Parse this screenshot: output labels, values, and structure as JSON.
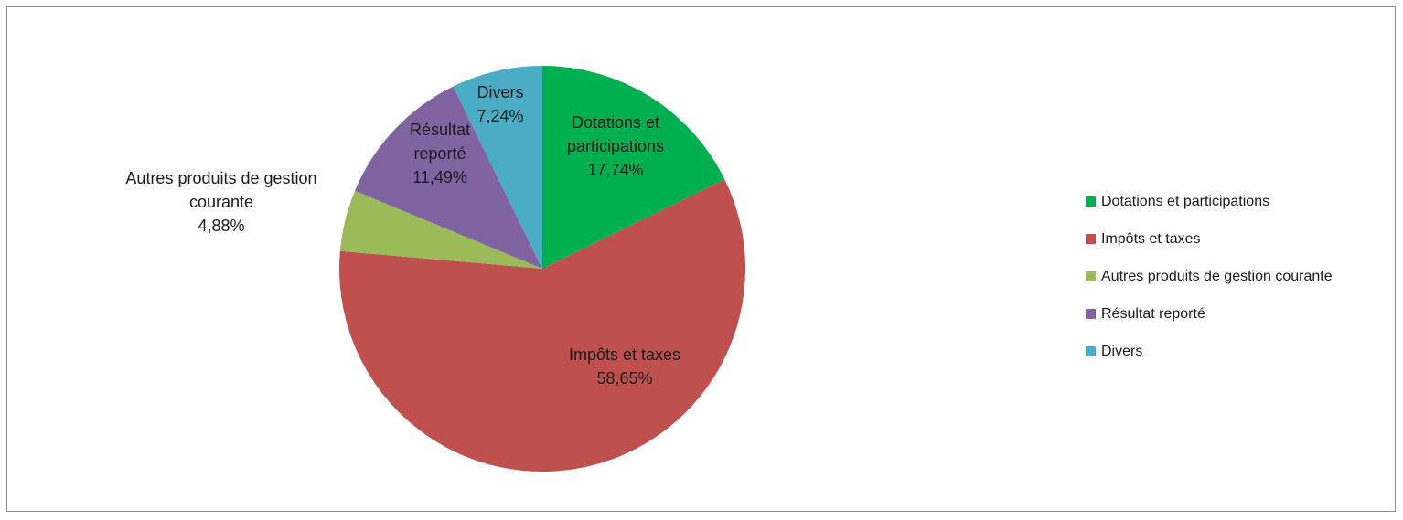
{
  "chart_data": {
    "type": "pie",
    "title": "",
    "slices": [
      {
        "label": "Dotations et participations",
        "value": 17.74,
        "display_label": [
          "Dotations et",
          "participations",
          "17,74%"
        ],
        "color": "#00b050"
      },
      {
        "label": "Impôts et taxes",
        "value": 58.65,
        "display_label": [
          "Impôts et taxes",
          "58,65%"
        ],
        "color": "#c0504d"
      },
      {
        "label": "Autres produits de gestion courante",
        "value": 4.88,
        "display_label": [
          "Autres produits de gestion",
          "courante",
          "4,88%"
        ],
        "color": "#9bbb59"
      },
      {
        "label": "Résultat reporté",
        "value": 11.49,
        "display_label": [
          "Résultat",
          "reporté",
          "11,49%"
        ],
        "color": "#8064a2"
      },
      {
        "label": "Divers",
        "value": 7.24,
        "display_label": [
          "Divers",
          "7,24%"
        ],
        "color": "#4bacc6"
      }
    ],
    "start_angle": "12 o'clock",
    "direction": "clockwise",
    "legend_position": "right"
  }
}
